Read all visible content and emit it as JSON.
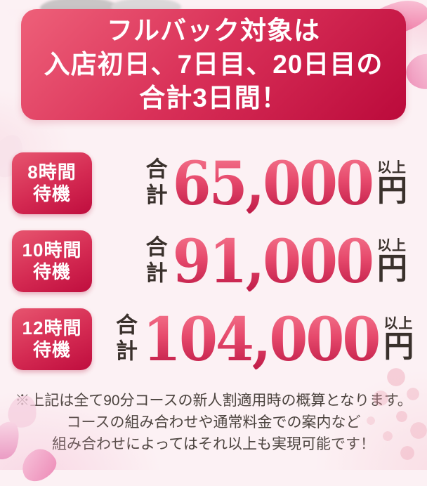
{
  "banner": {
    "lines": [
      "フルバック対象は",
      "入店初日、7日目、20日目の",
      "合計3日間！"
    ]
  },
  "rows": [
    {
      "badge": {
        "line1": "8時間",
        "line2": "待機"
      },
      "total_label": "合計",
      "amount": "65,000",
      "unit_small": "以上",
      "unit": "円"
    },
    {
      "badge": {
        "line1": "10時間",
        "line2": "待機"
      },
      "total_label": "合計",
      "amount": "91,000",
      "unit_small": "以上",
      "unit": "円"
    },
    {
      "badge": {
        "line1": "12時間",
        "line2": "待機"
      },
      "total_label": "合計",
      "amount": "104,000",
      "unit_small": "以上",
      "unit": "円"
    }
  ],
  "disclaimer": {
    "lines": [
      "※上記は全て90分コースの新人割適用時の概算となります。",
      "コースの組み合わせや通常料金での案内など",
      "組み合わせによってはそれ以上も実現可能です！"
    ]
  },
  "colors": {
    "page_background": "#fcf1f4",
    "banner_gradient_start": "#ee6079",
    "banner_gradient_end": "#bb0a3b",
    "badge_gradient_start": "#e7556f",
    "badge_gradient_end": "#bf0d3e",
    "amount_gradient_top": "#f4758c",
    "amount_gradient_bottom": "#bf1b47",
    "dark_text": "#3a312c",
    "disclaimer_text": "#4b433e",
    "banner_text": "#ffffff"
  }
}
